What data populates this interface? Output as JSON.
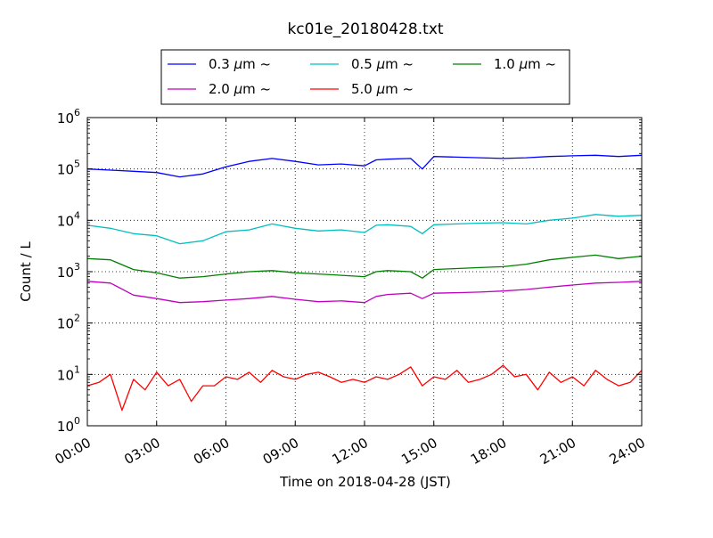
{
  "chart_data": {
    "type": "line",
    "title": "kc01e_20180428.txt",
    "xlabel": "Time on 2018-04-28 (JST)",
    "ylabel": "Count / L",
    "y_scale": "log",
    "grid": true,
    "legend_position": "top",
    "xlim": [
      "00:00",
      "24:00"
    ],
    "ylim": [
      1,
      1000000
    ],
    "x_tick_labels": [
      "00:00",
      "03:00",
      "06:00",
      "09:00",
      "12:00",
      "15:00",
      "18:00",
      "21:00",
      "24:00"
    ],
    "y_tick_labels": [
      {
        "base": "10",
        "exp": "0",
        "value": 1
      },
      {
        "base": "10",
        "exp": "1",
        "value": 10
      },
      {
        "base": "10",
        "exp": "2",
        "value": 100
      },
      {
        "base": "10",
        "exp": "3",
        "value": 1000
      },
      {
        "base": "10",
        "exp": "4",
        "value": 10000
      },
      {
        "base": "10",
        "exp": "5",
        "value": 100000
      },
      {
        "base": "10",
        "exp": "6",
        "value": 1000000
      }
    ],
    "series": [
      {
        "name": "0.3 μm ~",
        "legend_size": "0.3",
        "color": "#0000ff",
        "x": [
          "00:00",
          "01:00",
          "02:00",
          "03:00",
          "04:00",
          "05:00",
          "06:00",
          "07:00",
          "08:00",
          "09:00",
          "10:00",
          "11:00",
          "12:00",
          "12:30",
          "13:00",
          "14:00",
          "14:30",
          "15:00",
          "16:00",
          "17:00",
          "18:00",
          "19:00",
          "20:00",
          "21:00",
          "22:00",
          "23:00",
          "24:00"
        ],
        "y": [
          100000,
          95000,
          90000,
          85000,
          70000,
          80000,
          110000,
          140000,
          160000,
          140000,
          120000,
          125000,
          115000,
          150000,
          155000,
          160000,
          100000,
          175000,
          170000,
          165000,
          160000,
          165000,
          175000,
          180000,
          185000,
          175000,
          185000
        ]
      },
      {
        "name": "0.5 μm ~",
        "legend_size": "0.5",
        "color": "#00bfbf",
        "x": [
          "00:00",
          "01:00",
          "02:00",
          "03:00",
          "04:00",
          "05:00",
          "06:00",
          "07:00",
          "08:00",
          "09:00",
          "10:00",
          "11:00",
          "12:00",
          "12:30",
          "13:00",
          "14:00",
          "14:30",
          "15:00",
          "16:00",
          "17:00",
          "18:00",
          "19:00",
          "20:00",
          "21:00",
          "22:00",
          "23:00",
          "24:00"
        ],
        "y": [
          8000,
          7000,
          5500,
          5000,
          3500,
          4000,
          6000,
          6500,
          8500,
          7000,
          6200,
          6500,
          5800,
          8000,
          8200,
          7600,
          5500,
          8200,
          8500,
          8800,
          9000,
          8500,
          10000,
          11000,
          13000,
          12000,
          12500
        ]
      },
      {
        "name": "1.0 μm ~",
        "legend_size": "1.0",
        "color": "#008000",
        "x": [
          "00:00",
          "01:00",
          "02:00",
          "03:00",
          "04:00",
          "05:00",
          "06:00",
          "07:00",
          "08:00",
          "09:00",
          "10:00",
          "11:00",
          "12:00",
          "12:30",
          "13:00",
          "14:00",
          "14:30",
          "15:00",
          "16:00",
          "17:00",
          "18:00",
          "19:00",
          "20:00",
          "21:00",
          "22:00",
          "23:00",
          "24:00"
        ],
        "y": [
          1800,
          1700,
          1100,
          950,
          750,
          800,
          900,
          1000,
          1050,
          950,
          900,
          850,
          800,
          1000,
          1050,
          1000,
          750,
          1100,
          1150,
          1200,
          1250,
          1400,
          1700,
          1900,
          2100,
          1800,
          2000
        ]
      },
      {
        "name": "2.0 μm ~",
        "legend_size": "2.0",
        "color": "#bf00bf",
        "x": [
          "00:00",
          "01:00",
          "02:00",
          "03:00",
          "04:00",
          "05:00",
          "06:00",
          "07:00",
          "08:00",
          "09:00",
          "10:00",
          "11:00",
          "12:00",
          "12:30",
          "13:00",
          "14:00",
          "14:30",
          "15:00",
          "16:00",
          "17:00",
          "18:00",
          "19:00",
          "20:00",
          "21:00",
          "22:00",
          "23:00",
          "24:00"
        ],
        "y": [
          650,
          600,
          350,
          300,
          250,
          260,
          280,
          300,
          330,
          290,
          260,
          270,
          250,
          330,
          360,
          380,
          300,
          380,
          390,
          400,
          420,
          450,
          500,
          550,
          600,
          620,
          650
        ]
      },
      {
        "name": "5.0 μm ~",
        "legend_size": "5.0",
        "color": "#ff0000",
        "x": [
          "00:00",
          "00:30",
          "01:00",
          "01:30",
          "02:00",
          "02:30",
          "03:00",
          "03:30",
          "04:00",
          "04:30",
          "05:00",
          "05:30",
          "06:00",
          "06:30",
          "07:00",
          "07:30",
          "08:00",
          "08:30",
          "09:00",
          "09:30",
          "10:00",
          "10:30",
          "11:00",
          "11:30",
          "12:00",
          "12:30",
          "13:00",
          "13:30",
          "14:00",
          "14:30",
          "15:00",
          "15:30",
          "16:00",
          "16:30",
          "17:00",
          "17:30",
          "18:00",
          "18:30",
          "19:00",
          "19:30",
          "20:00",
          "20:30",
          "21:00",
          "21:30",
          "22:00",
          "22:30",
          "23:00",
          "23:30",
          "24:00"
        ],
        "y": [
          6,
          7,
          10,
          2,
          8,
          5,
          11,
          6,
          8,
          3,
          6,
          6,
          9,
          8,
          11,
          7,
          12,
          9,
          8,
          10,
          11,
          9,
          7,
          8,
          7,
          9,
          8,
          10,
          14,
          6,
          9,
          8,
          12,
          7,
          8,
          10,
          15,
          9,
          10,
          5,
          11,
          7,
          9,
          6,
          12,
          8,
          6,
          7,
          12
        ]
      }
    ]
  }
}
